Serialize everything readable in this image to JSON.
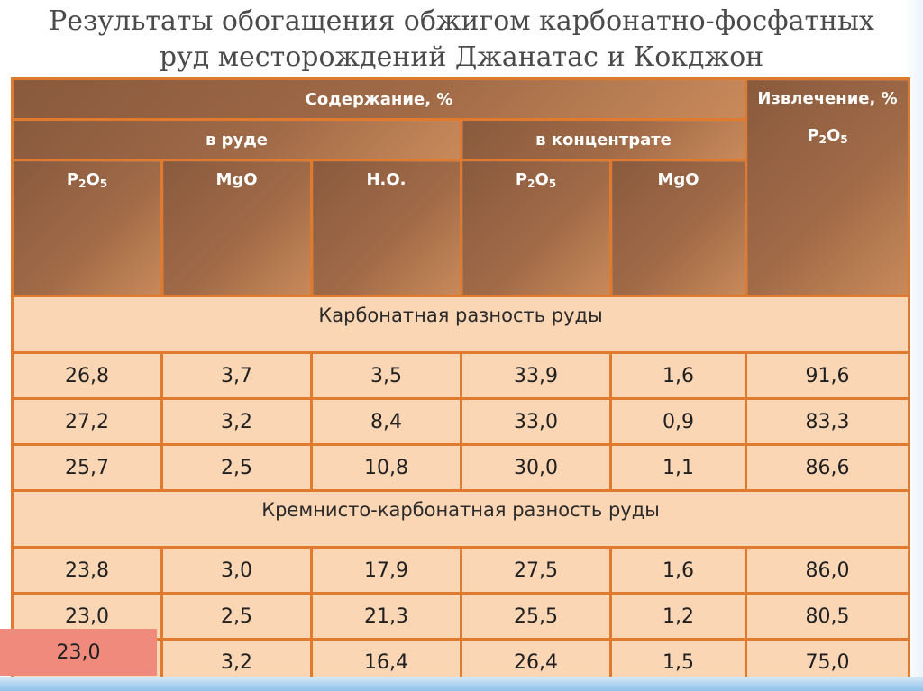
{
  "title_line1": "Результаты обогащения обжигом карбонатно-фосфатных",
  "title_line2": "руд месторождений Джанатас и Кокджон",
  "header": {
    "content": "Содержание, %",
    "extraction": "Извлечение, %",
    "in_ore": "в руде",
    "in_concentrate": "в концентрате",
    "p2o5_base": "P",
    "p2o5_mid": "O",
    "p2o5_sub1": "2",
    "p2o5_sub2": "5",
    "mgo": "MgO",
    "no": "Н.О."
  },
  "groups": {
    "carbonate": "Карбонатная разность руды",
    "siliceous": "Кремнисто-карбонатная разность руды"
  },
  "table_data": {
    "carbonate_rows": [
      [
        "26,8",
        "3,7",
        "3,5",
        "33,9",
        "1,6",
        "91,6"
      ],
      [
        "27,2",
        "3,2",
        "8,4",
        "33,0",
        "0,9",
        "83,3"
      ],
      [
        "25,7",
        "2,5",
        "10,8",
        "30,0",
        "1,1",
        "86,6"
      ]
    ],
    "siliceous_rows": [
      [
        "23,8",
        "3,0",
        "17,9",
        "27,5",
        "1,6",
        "86,0"
      ],
      [
        "23,0",
        "2,5",
        "21,3",
        "25,5",
        "1,2",
        "80,5"
      ],
      [
        "23,0",
        "3,2",
        "16,4",
        "26,4",
        "1,5",
        "75,0"
      ]
    ]
  },
  "colors": {
    "header_bg": "#a06a47",
    "cell_bg": "#fbd6b5",
    "border": "#e07a2f",
    "highlight": "#f08a7c"
  }
}
